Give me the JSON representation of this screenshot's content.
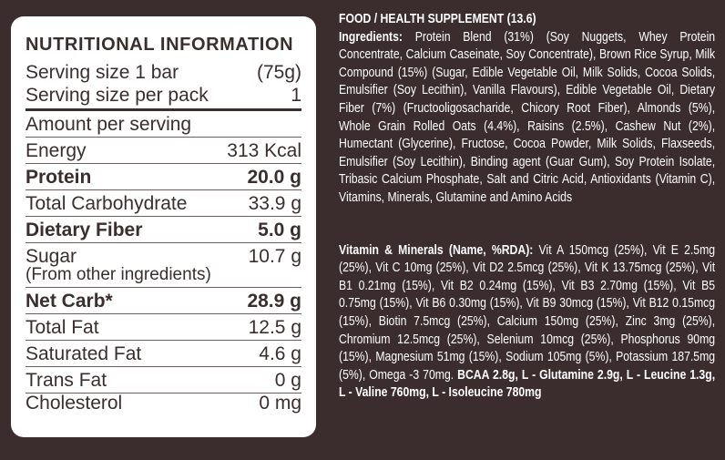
{
  "nutrition": {
    "title": "NUTRITIONAL INFORMATION",
    "serving": [
      {
        "label": "Serving size 1 bar",
        "value": "(75g)"
      },
      {
        "label": "Serving size per pack",
        "value": "1"
      }
    ],
    "amount_header": "Amount per serving",
    "rows": [
      {
        "label": "Energy",
        "value": "313 Kcal"
      },
      {
        "label": "Protein",
        "value": "20.0 g"
      },
      {
        "label": "Total Carbohydrate",
        "value": "33.9 g"
      },
      {
        "label": "Dietary Fiber",
        "value": "5.0 g"
      },
      {
        "label": "Sugar",
        "value": "10.7 g",
        "note": "(From other ingredients)"
      },
      {
        "label": "Net Carb*",
        "value": "28.9 g"
      },
      {
        "label": "Total Fat",
        "value": "12.5 g"
      },
      {
        "label": "Saturated Fat",
        "value": "4.6 g"
      },
      {
        "label": "Trans Fat",
        "value": "0 g"
      },
      {
        "label": "Cholesterol",
        "value": "0 mg"
      }
    ]
  },
  "details": {
    "heading": "FOOD / HEALTH SUPPLEMENT (13.6)",
    "ingredients_label": "Ingredients:",
    "ingredients": "Protein Blend (31%) (Soy Nuggets, Whey Protein Concentrate, Calcium Caseinate, Soy Concentrate), Brown Rice Syrup, Milk Compound (15%) (Sugar, Edible Vegetable Oil, Milk Solids, Cocoa Solids, Emulsifier (Soy Lecithin), Vanilla Flavours), Edible Vegetable Oil, Dietary Fiber (7%) (Fructooligosacharide, Chicory Root Fiber), Almonds (5%), Whole Grain Rolled Oats (4.4%), Raisins (2.5%), Cashew Nut (2%), Humectant (Glycerine), Fructose, Cocoa Powder, Milk Solids, Flaxseeds, Emulsifier (Soy Lecithin), Binding agent (Guar Gum), Soy Protein Isolate, Tribasic Calcium Phosphate, Salt and Citric Acid, Antioxidants (Vitamin C), Vitamins, Minerals, Glutamine and Amino Acids",
    "vitamins_label": "Vitamin & Minerals (Name, %RDA):",
    "vitamins": "Vit A 150mcg (25%), Vit E 2.5mg (25%), Vit C 10mg (25%), Vit D2  2.5mcg (25%), Vit K 13.75mcg (25%), Vit B1 0.21mg (15%), Vit B2 0.24mg (15%), Vit B3 2.70mg (15%), Vit B5 0.75mg (15%), Vit B6 0.30mg (15%), Vit B9 30mcg (15%), Vit B12 0.15mcg (15%), Biotin 7.5mcg (25%), Calcium 150mg (25%), Zinc 3mg (25%), Chromium 12.5mcg (25%), Selenium 10mcg (25%), Phosphorus 90mg (15%), Magnesium 51mg (15%), Sodium 105mg (5%), Potassium 187.5mg (5%), Omega -3 70mg.",
    "amino_acids": "BCAA 2.8g, L - Glutamine 2.9g, L - Leucine 1.3g, L - Valine 760mg, L - Isoleucine 780mg"
  }
}
